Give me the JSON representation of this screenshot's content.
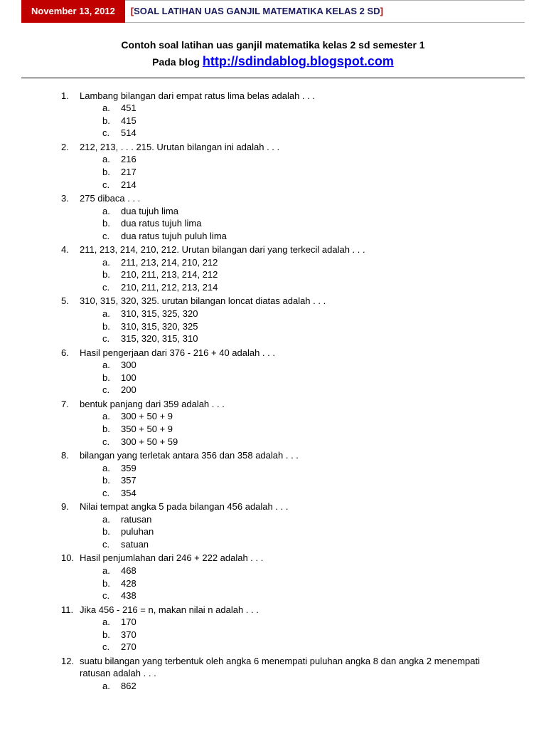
{
  "header": {
    "date": "November 13, 2012",
    "bracket_open": "[",
    "bracket_close": "]",
    "title": "SOAL LATIHAN UAS GANJIL MATEMATIKA KELAS 2 SD"
  },
  "subtitle": "Contoh soal latihan uas ganjil matematika kelas 2 sd semester 1",
  "subtitle2_prefix": "Pada blog ",
  "subtitle2_link": "http://sdindablog.blogspot.com",
  "questions": [
    {
      "n": "1.",
      "text": "Lambang bilangan dari empat ratus lima belas adalah . . .",
      "opts": [
        [
          "a.",
          "451"
        ],
        [
          "b.",
          "415"
        ],
        [
          "c.",
          "514"
        ]
      ]
    },
    {
      "n": "2.",
      "text": "212, 213, . . . 215. Urutan bilangan ini adalah . . .",
      "opts": [
        [
          "a.",
          "216"
        ],
        [
          "b.",
          "217"
        ],
        [
          "c.",
          "214"
        ]
      ]
    },
    {
      "n": "3.",
      "text": "275 dibaca . . .",
      "opts": [
        [
          "a.",
          "dua tujuh lima"
        ],
        [
          "b.",
          "dua ratus tujuh lima"
        ],
        [
          "c.",
          "dua ratus tujuh puluh lima"
        ]
      ]
    },
    {
      "n": "4.",
      "text": "211, 213, 214, 210, 212. Urutan bilangan dari yang terkecil adalah . . .",
      "opts": [
        [
          "a.",
          "211, 213, 214, 210, 212"
        ],
        [
          "b.",
          "210, 211, 213, 214, 212"
        ],
        [
          "c.",
          "210, 211, 212, 213, 214"
        ]
      ]
    },
    {
      "n": "5.",
      "text": "310, 315, 320, 325. urutan bilangan loncat diatas adalah . . .",
      "opts": [
        [
          "a.",
          "310, 315, 325, 320"
        ],
        [
          "b.",
          "310, 315, 320, 325"
        ],
        [
          "c.",
          "315, 320, 315, 310"
        ]
      ]
    },
    {
      "n": "6.",
      "text": "Hasil pengerjaan dari 376 - 216 + 40 adalah . . .",
      "opts": [
        [
          "a.",
          "300"
        ],
        [
          "b.",
          "100"
        ],
        [
          "c.",
          "200"
        ]
      ]
    },
    {
      "n": "7.",
      "text": "bentuk panjang dari 359 adalah . . .",
      "opts": [
        [
          "a.",
          "300 + 50 + 9"
        ],
        [
          "b.",
          "350 + 50 + 9"
        ],
        [
          "c.",
          "300 + 50 + 59"
        ]
      ]
    },
    {
      "n": "8.",
      "text": "bilangan yang terletak antara 356 dan 358 adalah . . .",
      "opts": [
        [
          "a.",
          "359"
        ],
        [
          "b.",
          "357"
        ],
        [
          "c.",
          "354"
        ]
      ]
    },
    {
      "n": "9.",
      "text": "Nilai tempat angka 5 pada bilangan 456 adalah . . .",
      "opts": [
        [
          "a.",
          "ratusan"
        ],
        [
          "b.",
          "puluhan"
        ],
        [
          "c.",
          "satuan"
        ]
      ]
    },
    {
      "n": "10.",
      "text": "Hasil penjumlahan dari 246 + 222 adalah . . .",
      "opts": [
        [
          "a.",
          "468"
        ],
        [
          "b.",
          "428"
        ],
        [
          "c.",
          "438"
        ]
      ]
    },
    {
      "n": "11.",
      "text": "Jika 456 - 216 = n, makan nilai n adalah . . .",
      "opts": [
        [
          "a.",
          "170"
        ],
        [
          "b.",
          "370"
        ],
        [
          "c.",
          "270"
        ]
      ]
    },
    {
      "n": "12.",
      "text": "suatu bilangan yang terbentuk oleh angka 6 menempati puluhan angka 8 dan angka 2 menempati ratusan adalah . . .",
      "opts": [
        [
          "a.",
          "862"
        ]
      ]
    }
  ]
}
